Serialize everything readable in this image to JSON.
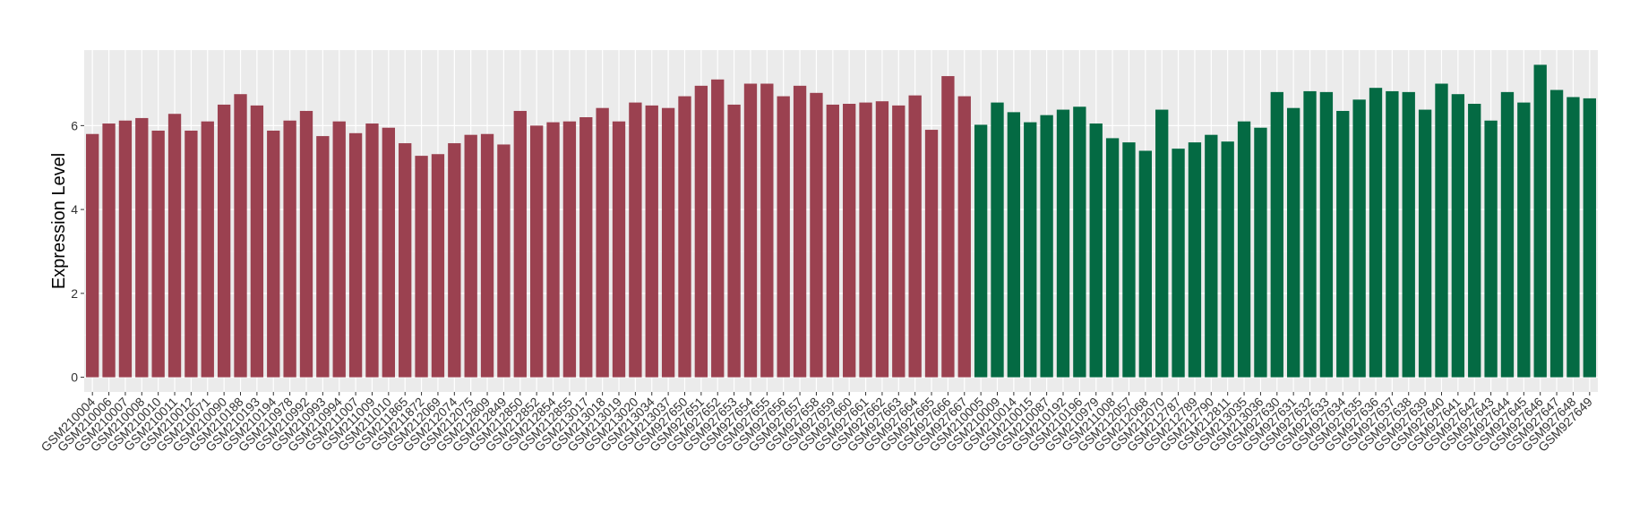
{
  "chart_data": {
    "type": "bar",
    "y_label": "Expression Level",
    "categories": [
      "GSM210004",
      "GSM210006",
      "GSM210007",
      "GSM210008",
      "GSM210010",
      "GSM210011",
      "GSM210012",
      "GSM210071",
      "GSM210090",
      "GSM210188",
      "GSM210193",
      "GSM210194",
      "GSM210978",
      "GSM210992",
      "GSM210993",
      "GSM210994",
      "GSM211007",
      "GSM211009",
      "GSM211010",
      "GSM211865",
      "GSM211872",
      "GSM212069",
      "GSM212074",
      "GSM212075",
      "GSM212809",
      "GSM212849",
      "GSM212850",
      "GSM212852",
      "GSM212854",
      "GSM212855",
      "GSM213017",
      "GSM213018",
      "GSM213019",
      "GSM213020",
      "GSM213034",
      "GSM213037",
      "GSM927650",
      "GSM927651",
      "GSM927652",
      "GSM927653",
      "GSM927654",
      "GSM927655",
      "GSM927656",
      "GSM927657",
      "GSM927658",
      "GSM927659",
      "GSM927660",
      "GSM927661",
      "GSM927662",
      "GSM927663",
      "GSM927664",
      "GSM927665",
      "GSM927666",
      "GSM927667",
      "GSM210005",
      "GSM210009",
      "GSM210014",
      "GSM210015",
      "GSM210087",
      "GSM210192",
      "GSM210196",
      "GSM210979",
      "GSM211008",
      "GSM212057",
      "GSM212068",
      "GSM212070",
      "GSM212787",
      "GSM212789",
      "GSM212790",
      "GSM212811",
      "GSM213035",
      "GSM213036",
      "GSM927630",
      "GSM927631",
      "GSM927632",
      "GSM927633",
      "GSM927634",
      "GSM927635",
      "GSM927636",
      "GSM927637",
      "GSM927638",
      "GSM927639",
      "GSM927640",
      "GSM927641",
      "GSM927642",
      "GSM927643",
      "GSM927644",
      "GSM927645",
      "GSM927646",
      "GSM927647",
      "GSM927648",
      "GSM927649"
    ],
    "series": [
      {
        "color": "#9b4150",
        "values": [
          5.8,
          6.05,
          6.12,
          6.18,
          5.88,
          6.28,
          5.88,
          6.1,
          6.5,
          6.75,
          6.48,
          5.88,
          6.12,
          6.35,
          5.75,
          6.1,
          5.82,
          6.05,
          5.95,
          5.58,
          5.28,
          5.32,
          5.58,
          5.78,
          5.8,
          5.55,
          6.35,
          6.0,
          6.08,
          6.1,
          6.2,
          6.42,
          6.1,
          6.55,
          6.48,
          6.42,
          6.7,
          6.95,
          7.1,
          6.5,
          7.0,
          7.0,
          6.7,
          6.95,
          6.78,
          6.5,
          6.52,
          6.55,
          6.58,
          6.48,
          6.72,
          5.9,
          7.18,
          6.7,
          null,
          null,
          null,
          null,
          null,
          null,
          null,
          null,
          null,
          null,
          null,
          null,
          null,
          null,
          null,
          null,
          null,
          null,
          null,
          null,
          null,
          null,
          null,
          null,
          null,
          null,
          null,
          null,
          null,
          null,
          null,
          null,
          null,
          null,
          null,
          null,
          null,
          null
        ]
      },
      {
        "color": "#046a43",
        "values": [
          null,
          null,
          null,
          null,
          null,
          null,
          null,
          null,
          null,
          null,
          null,
          null,
          null,
          null,
          null,
          null,
          null,
          null,
          null,
          null,
          null,
          null,
          null,
          null,
          null,
          null,
          null,
          null,
          null,
          null,
          null,
          null,
          null,
          null,
          null,
          null,
          null,
          null,
          null,
          null,
          null,
          null,
          null,
          null,
          null,
          null,
          null,
          null,
          null,
          null,
          null,
          null,
          null,
          null,
          6.02,
          6.55,
          6.32,
          6.08,
          6.25,
          6.38,
          6.45,
          6.05,
          5.7,
          5.6,
          5.4,
          6.38,
          5.45,
          5.6,
          5.78,
          5.62,
          6.1,
          5.95,
          6.8,
          6.42,
          6.82,
          6.8,
          6.35,
          6.62,
          6.9,
          6.82,
          6.8,
          6.38,
          7.0,
          6.75,
          6.52,
          6.12,
          6.8,
          6.55,
          7.45,
          6.85,
          6.68,
          6.65
        ]
      }
    ],
    "ylim": [
      -0.35,
      7.8
    ],
    "yticks": [
      0,
      2,
      4,
      6
    ],
    "grid": true
  }
}
